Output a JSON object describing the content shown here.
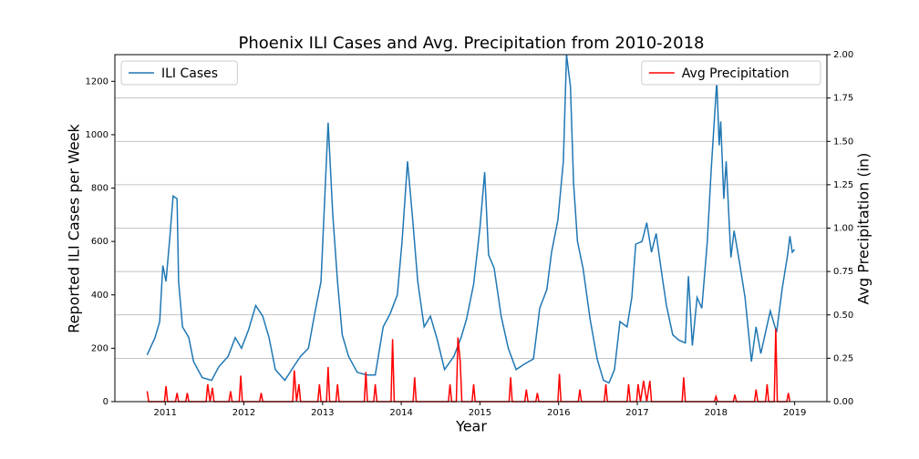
{
  "chart_data": {
    "type": "line",
    "title": "Phoenix ILI Cases and Avg. Precipitation from 2010-2018",
    "xlabel": "Year",
    "ylabel": "Reported ILI Cases per Week",
    "y2label": "Avg Precipitation (in)",
    "xlim": [
      2010.36,
      2019.41
    ],
    "xticks": [
      2011,
      2012,
      2013,
      2014,
      2015,
      2016,
      2017,
      2018,
      2019
    ],
    "ylim": [
      0,
      1300
    ],
    "yticks": [
      0,
      200,
      400,
      600,
      800,
      1000,
      1200
    ],
    "y2lim": [
      0,
      2.0
    ],
    "y2ticks": [
      {
        "value": 0,
        "label": "0.00"
      },
      {
        "value": 0.25,
        "label": "0.25"
      },
      {
        "value": 0.5,
        "label": "0.50"
      },
      {
        "value": 0.75,
        "label": "0.75"
      },
      {
        "value": 1.0,
        "label": "1.00"
      },
      {
        "value": 1.25,
        "label": "1.25"
      },
      {
        "value": 1.5,
        "label": "1.50"
      },
      {
        "value": 1.75,
        "label": "1.75"
      },
      {
        "value": 2.0,
        "label": "2.00"
      }
    ],
    "grid": "y2",
    "legend_y": "upper left",
    "legend_y2": "upper right",
    "series": [
      {
        "name": "ILI Cases",
        "color": "#1f77b4",
        "axis": "y",
        "x": [
          2010.77,
          2010.87,
          2010.93,
          2010.97,
          2011.01,
          2011.06,
          2011.1,
          2011.15,
          2011.17,
          2011.22,
          2011.3,
          2011.36,
          2011.47,
          2011.59,
          2011.68,
          2011.8,
          2011.89,
          2011.97,
          2012.06,
          2012.15,
          2012.24,
          2012.32,
          2012.4,
          2012.52,
          2012.63,
          2012.72,
          2012.82,
          2012.9,
          2012.98,
          2013.07,
          2013.13,
          2013.19,
          2013.25,
          2013.33,
          2013.44,
          2013.56,
          2013.67,
          2013.77,
          2013.86,
          2013.95,
          2014.01,
          2014.08,
          2014.14,
          2014.21,
          2014.29,
          2014.37,
          2014.46,
          2014.55,
          2014.67,
          2014.76,
          2014.83,
          2014.92,
          2015.0,
          2015.06,
          2015.11,
          2015.18,
          2015.27,
          2015.36,
          2015.46,
          2015.56,
          2015.68,
          2015.76,
          2015.85,
          2015.91,
          2015.99,
          2016.06,
          2016.1,
          2016.15,
          2016.19,
          2016.24,
          2016.31,
          2016.4,
          2016.49,
          2016.57,
          2016.64,
          2016.71,
          2016.78,
          2016.87,
          2016.93,
          2016.98,
          2017.06,
          2017.12,
          2017.18,
          2017.24,
          2017.31,
          2017.37,
          2017.45,
          2017.53,
          2017.61,
          2017.65,
          2017.7,
          2017.76,
          2017.82,
          2017.89,
          2017.94,
          2018.01,
          2018.04,
          2018.06,
          2018.1,
          2018.13,
          2018.19,
          2018.23,
          2018.3,
          2018.37,
          2018.45,
          2018.51,
          2018.57,
          2018.63,
          2018.69,
          2018.77,
          2018.84,
          2018.91,
          2018.94,
          2018.97,
          2019.0
        ],
        "values": [
          175,
          240,
          300,
          510,
          450,
          620,
          770,
          760,
          450,
          280,
          240,
          150,
          90,
          80,
          130,
          170,
          240,
          200,
          270,
          360,
          320,
          240,
          120,
          80,
          130,
          170,
          200,
          330,
          450,
          1045,
          700,
          450,
          250,
          170,
          110,
          100,
          100,
          280,
          330,
          400,
          600,
          900,
          700,
          450,
          280,
          320,
          230,
          120,
          170,
          240,
          310,
          440,
          650,
          860,
          550,
          500,
          320,
          200,
          120,
          140,
          160,
          350,
          420,
          560,
          680,
          900,
          1300,
          1180,
          820,
          600,
          500,
          310,
          160,
          80,
          70,
          120,
          300,
          280,
          390,
          590,
          600,
          670,
          560,
          630,
          480,
          360,
          250,
          230,
          220,
          470,
          210,
          390,
          350,
          600,
          870,
          1200,
          960,
          1050,
          760,
          900,
          540,
          640,
          520,
          390,
          150,
          280,
          180,
          260,
          340,
          260,
          420,
          550,
          620,
          560,
          570
        ]
      },
      {
        "name": "Avg Precipitation",
        "color": "#ff0000",
        "axis": "y2",
        "x": [
          2010.77,
          2010.79,
          2010.99,
          2011.01,
          2011.03,
          2011.13,
          2011.15,
          2011.17,
          2011.26,
          2011.28,
          2011.3,
          2011.52,
          2011.54,
          2011.57,
          2011.6,
          2011.62,
          2011.81,
          2011.83,
          2011.85,
          2011.94,
          2011.96,
          2011.98,
          2012.2,
          2012.22,
          2012.24,
          2012.62,
          2012.64,
          2012.67,
          2012.7,
          2012.72,
          2012.94,
          2012.96,
          2012.98,
          2013.05,
          2013.07,
          2013.09,
          2013.17,
          2013.19,
          2013.21,
          2013.53,
          2013.55,
          2013.57,
          2013.65,
          2013.67,
          2013.69,
          2013.87,
          2013.89,
          2013.91,
          2014.15,
          2014.17,
          2014.19,
          2014.6,
          2014.62,
          2014.64,
          2014.7,
          2014.72,
          2014.75,
          2014.77,
          2014.9,
          2014.92,
          2014.94,
          2015.37,
          2015.39,
          2015.41,
          2015.57,
          2015.59,
          2015.61,
          2015.71,
          2015.73,
          2015.75,
          2015.99,
          2016.01,
          2016.03,
          2016.25,
          2016.27,
          2016.29,
          2016.58,
          2016.6,
          2016.62,
          2016.87,
          2016.89,
          2016.91,
          2016.99,
          2017.01,
          2017.04,
          2017.08,
          2017.12,
          2017.16,
          2017.18,
          2017.57,
          2017.59,
          2017.61,
          2017.98,
          2018.0,
          2018.02,
          2018.22,
          2018.24,
          2018.26,
          2018.49,
          2018.51,
          2018.53,
          2018.63,
          2018.65,
          2018.67,
          2018.74,
          2018.76,
          2018.78,
          2018.9,
          2018.92,
          2018.94
        ],
        "values": [
          0.06,
          0,
          0,
          0.09,
          0,
          0,
          0.05,
          0,
          0,
          0.05,
          0,
          0,
          0.1,
          0,
          0.08,
          0,
          0,
          0.06,
          0,
          0,
          0.15,
          0,
          0,
          0.05,
          0,
          0,
          0.18,
          0,
          0.1,
          0,
          0,
          0.1,
          0,
          0,
          0.2,
          0,
          0,
          0.1,
          0,
          0,
          0.17,
          0,
          0,
          0.1,
          0,
          0,
          0.36,
          0,
          0,
          0.14,
          0,
          0,
          0.1,
          0,
          0,
          0.37,
          0.23,
          0,
          0,
          0.1,
          0,
          0,
          0.14,
          0,
          0,
          0.07,
          0,
          0,
          0.05,
          0,
          0,
          0.16,
          0,
          0,
          0.07,
          0,
          0,
          0.1,
          0,
          0,
          0.1,
          0,
          0,
          0.1,
          0,
          0.12,
          0,
          0.12,
          0,
          0,
          0.14,
          0,
          0,
          0.03,
          0,
          0,
          0.04,
          0,
          0,
          0.07,
          0,
          0,
          0.1,
          0,
          0,
          0.42,
          0,
          0,
          0.05,
          0
        ]
      }
    ]
  }
}
